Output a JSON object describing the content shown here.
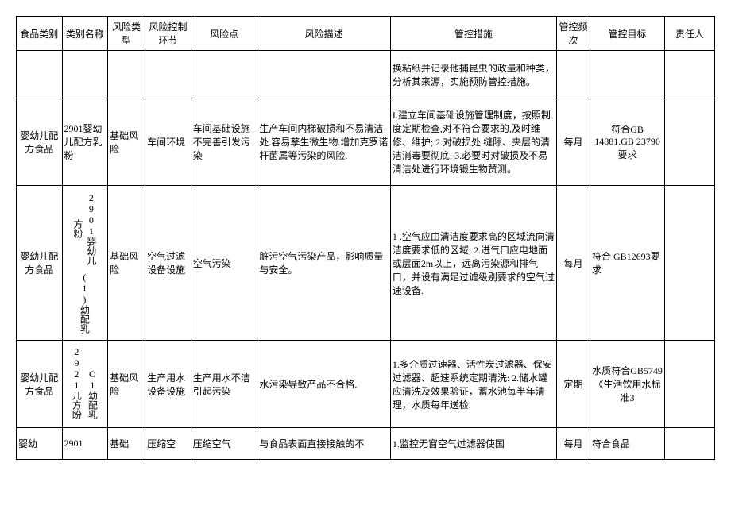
{
  "headers": {
    "col0": "食品类别",
    "col1": "类别名称",
    "col2": "风险类型",
    "col3": "风险控制环节",
    "col4": "风险点",
    "col5": "风险描述",
    "col6": "管控措施",
    "col7": "管控频次",
    "col8": "管控目标",
    "col9": "责任人"
  },
  "rows": [
    {
      "c0": "",
      "c1": "",
      "c2": "",
      "c3": "",
      "c4": "",
      "c5": "",
      "c6": "换粘纸并记录他捕昆虫的政量和种类，分析其来源，实施预防管控措施。",
      "c7": "",
      "c8": "",
      "c9": ""
    },
    {
      "c0": "婴幼儿配方食品",
      "c1": "2901婴幼儿配方乳粉",
      "c2": "基础风险",
      "c3": "车间环境",
      "c4": "车间基础设施不完善引发污染",
      "c5": "生产车间内梯破损和不易清洁处.容易孳生微生物.增加克罗诺杆菌属等污染的风险.",
      "c6": "I.建立车间基础设施管理制度，按照制度定期检查,对不符合要求的,及时维修、维护; 2.对破损处.缝隙、夹层的清洁消毒要彻底: 3.必要时对破损及不易清洁处进行环境锻生物赞测。",
      "c7": "每月",
      "c8": "符合GB 14881.GB 23790要求",
      "c9": ""
    },
    {
      "c0": "婴幼儿配方食品",
      "c1a": "2901婴幼儿方粉",
      "c1b": "(1)幼配乳",
      "c2": "基础风险",
      "c3": "空气过滤设备设施",
      "c4": "空气污染",
      "c5": "脏污空气污染产品，影响质量与安全。",
      "c6": "1 .空气应由清洁度要求高的区域流向清洁度要求低的区域; 2.进气口应电地面或层面2m以上，远离污染源和排气口，并设有满足过谑级别要求的空气过速设备.",
      "c7": "每月",
      "c8": "符合 GB12693要求",
      "c9": ""
    },
    {
      "c0": "婴幼儿配方食品",
      "c1a": "2921儿方盼",
      "c1b": "O1幼配乳",
      "c2": "基础风险",
      "c3": "生产用水设备设施",
      "c4": "生产用水不洁引起污染",
      "c5": "水污染导致产品不合格.",
      "c6": "1.多介质过速器、活性炭过滤器、保安过滤器、超速系统定期清洗: 2.储水罐应清洗及效果验证，蓄水池每半年清理，水质每年送检.",
      "c7": "定期",
      "c8": "水质符合GB5749《生活饮用水标准3",
      "c9": ""
    },
    {
      "c0": "婴幼",
      "c1": "2901",
      "c2": "基础",
      "c3": "压缩空",
      "c4": "压缩空气",
      "c5": "与食品表面直接接触的不",
      "c6": "1.监控无窗空气过滤器使国",
      "c7": "每月",
      "c8": "符合食品",
      "c9": ""
    }
  ]
}
